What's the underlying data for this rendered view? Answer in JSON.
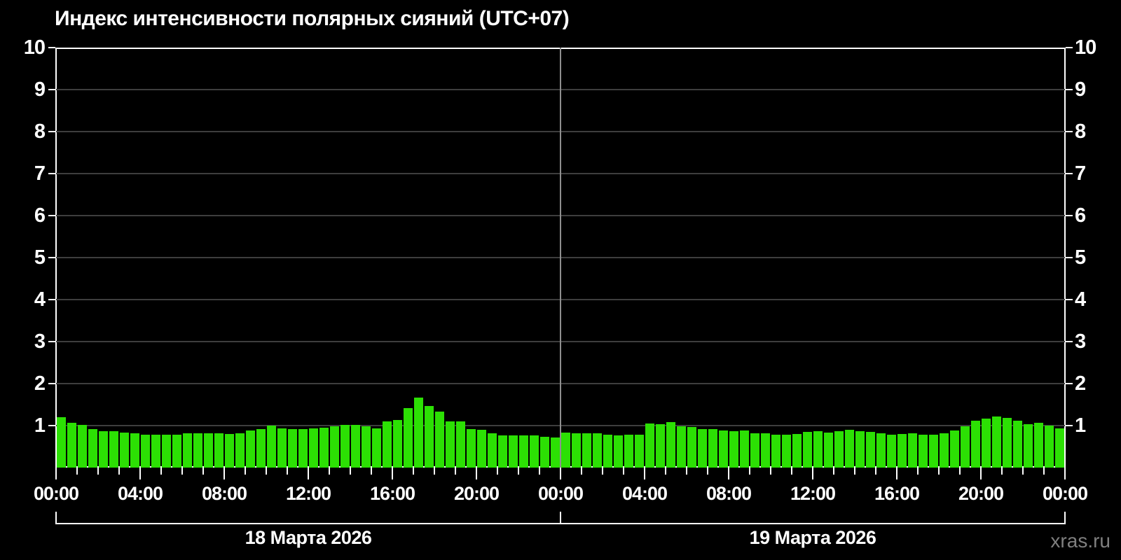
{
  "title": "Индекс интенсивности полярных сияний (UTC+07)",
  "watermark": "xras.ru",
  "colors": {
    "background": "#000000",
    "bar": "#2ce004",
    "gridline": "#3e3e3e",
    "day_divider": "#8f8f8f",
    "frame": "#ffffff",
    "text": "#ffffff",
    "watermark": "#7f7f7f"
  },
  "chart_data": {
    "type": "bar",
    "title": "Индекс интенсивности полярных сияний (UTC+07)",
    "ylabel": "",
    "xlabel": "",
    "ylim": [
      0,
      10
    ],
    "yticks": [
      "1",
      "2",
      "3",
      "4",
      "5",
      "6",
      "7",
      "8",
      "9",
      "10"
    ],
    "xtick_labels": [
      "00:00",
      "04:00",
      "08:00",
      "12:00",
      "16:00",
      "20:00",
      "00:00",
      "04:00",
      "08:00",
      "12:00",
      "16:00",
      "20:00",
      "00:00"
    ],
    "interval_minutes": 30,
    "grid": "horizontal",
    "legend": "none",
    "days": [
      {
        "date": "18 Марта 2026",
        "values": [
          1.2,
          1.07,
          1.01,
          0.92,
          0.87,
          0.86,
          0.84,
          0.81,
          0.79,
          0.78,
          0.78,
          0.78,
          0.82,
          0.82,
          0.81,
          0.81,
          0.8,
          0.82,
          0.88,
          0.92,
          1.0,
          0.93,
          0.92,
          0.92,
          0.93,
          0.95,
          0.98,
          1.02,
          1.02,
          0.99,
          0.93,
          1.1,
          1.14,
          1.41,
          1.67,
          1.46,
          1.34,
          1.1,
          1.1,
          0.92,
          0.9,
          0.81,
          0.77,
          0.76,
          0.76,
          0.76,
          0.73,
          0.72
        ]
      },
      {
        "date": "19 Марта 2026",
        "values": [
          0.84,
          0.82,
          0.81,
          0.81,
          0.79,
          0.77,
          0.79,
          0.79,
          1.05,
          1.04,
          1.08,
          0.98,
          0.97,
          0.91,
          0.92,
          0.89,
          0.87,
          0.88,
          0.81,
          0.81,
          0.78,
          0.78,
          0.8,
          0.85,
          0.86,
          0.84,
          0.86,
          0.9,
          0.86,
          0.85,
          0.81,
          0.79,
          0.8,
          0.81,
          0.79,
          0.79,
          0.82,
          0.89,
          0.98,
          1.11,
          1.16,
          1.21,
          1.18,
          1.12,
          1.04,
          1.06,
          1.0,
          0.94
        ]
      }
    ]
  }
}
